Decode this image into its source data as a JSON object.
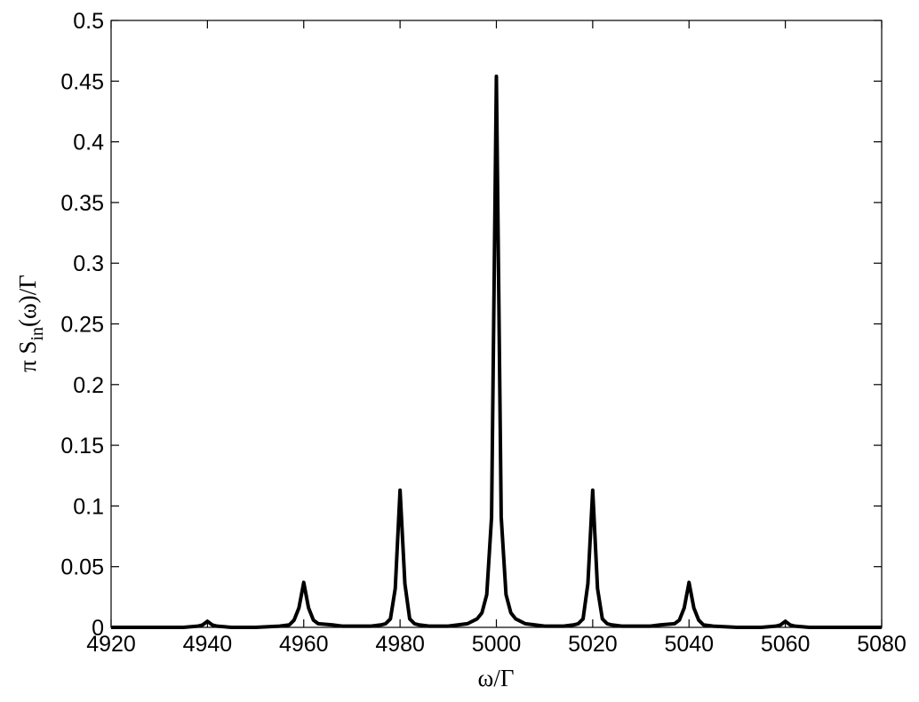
{
  "chart_data": {
    "type": "line",
    "x_label": "ω/Γ",
    "y_label": [
      "π S",
      "in",
      "(ω)/Γ"
    ],
    "x": [
      4920,
      4930,
      4935,
      4938,
      4939,
      4940,
      4941,
      4942,
      4945,
      4950,
      4955,
      4957,
      4958,
      4959,
      4960,
      4961,
      4962,
      4963,
      4966,
      4968,
      4970,
      4972,
      4974,
      4976,
      4977,
      4978,
      4979,
      4980,
      4981,
      4982,
      4983,
      4984,
      4986,
      4988,
      4990,
      4992,
      4994,
      4996,
      4997,
      4998,
      4999,
      5000,
      5001,
      5002,
      5003,
      5004,
      5006,
      5008,
      5010,
      5012,
      5014,
      5016,
      5017,
      5018,
      5019,
      5020,
      5021,
      5022,
      5023,
      5024,
      5026,
      5028,
      5030,
      5032,
      5034,
      5037,
      5038,
      5039,
      5040,
      5041,
      5042,
      5043,
      5045,
      5050,
      5055,
      5058,
      5059,
      5060,
      5061,
      5062,
      5065,
      5070,
      5080
    ],
    "series": [
      {
        "color": "#000000",
        "values": [
          0,
          0,
          0,
          0.001,
          0.002,
          0.005,
          0.002,
          0.001,
          0,
          0,
          0.001,
          0.002,
          0.006,
          0.016,
          0.037,
          0.016,
          0.006,
          0.003,
          0.002,
          0.001,
          0.001,
          0.001,
          0.001,
          0.002,
          0.003,
          0.007,
          0.032,
          0.113,
          0.036,
          0.007,
          0.003,
          0.002,
          0.001,
          0.001,
          0.001,
          0.002,
          0.003,
          0.007,
          0.012,
          0.027,
          0.091,
          0.454,
          0.091,
          0.027,
          0.012,
          0.007,
          0.003,
          0.002,
          0.001,
          0.001,
          0.001,
          0.002,
          0.003,
          0.007,
          0.036,
          0.113,
          0.032,
          0.007,
          0.003,
          0.002,
          0.001,
          0.001,
          0.001,
          0.001,
          0.002,
          0.003,
          0.006,
          0.016,
          0.037,
          0.016,
          0.006,
          0.002,
          0.001,
          0,
          0,
          0.001,
          0.002,
          0.005,
          0.002,
          0.001,
          0,
          0,
          0
        ]
      }
    ],
    "xlim": [
      4920,
      5080
    ],
    "xticks": [
      4920,
      4940,
      4960,
      4980,
      5000,
      5020,
      5040,
      5060,
      5080
    ],
    "ylim": [
      0,
      0.5
    ],
    "yticks": [
      0,
      0.05,
      0.1,
      0.15,
      0.2,
      0.25,
      0.3,
      0.35,
      0.4,
      0.45,
      0.5
    ],
    "grid": false
  }
}
